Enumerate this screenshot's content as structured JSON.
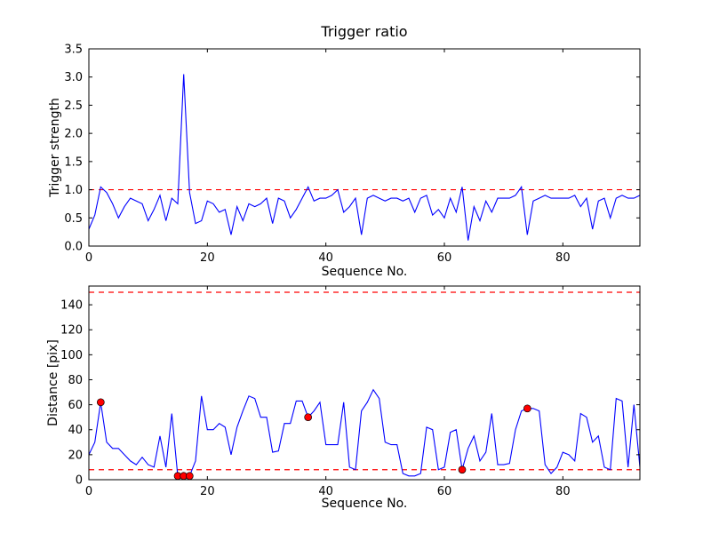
{
  "figure": {
    "background": "#ffffff",
    "line_color": "#0000ff",
    "threshold_color": "#ff0000",
    "dot_color": "#ff0000",
    "dot_edge_color": "#000000",
    "axis_color": "#000000"
  },
  "chart_data": [
    {
      "type": "line",
      "title": "Trigger ratio",
      "xlabel": "Sequence No.",
      "ylabel": "Trigger strength",
      "xlim": [
        0,
        93
      ],
      "ylim": [
        0,
        3.5
      ],
      "grid": false,
      "legend": "none",
      "xticks": {
        "values": [
          0,
          20,
          40,
          60,
          80
        ],
        "labels": [
          "0",
          "20",
          "40",
          "60",
          "80"
        ]
      },
      "yticks": {
        "values": [
          0,
          0.5,
          1.0,
          1.5,
          2.0,
          2.5,
          3.0,
          3.5
        ],
        "labels": [
          "0.0",
          "0.5",
          "1.0",
          "1.5",
          "2.0",
          "2.5",
          "3.0",
          "3.5"
        ]
      },
      "thresholds": [
        1.0
      ],
      "series": [
        {
          "name": "trigger-strength",
          "values": [
            0.3,
            0.55,
            1.05,
            0.95,
            0.75,
            0.5,
            0.7,
            0.85,
            0.8,
            0.75,
            0.45,
            0.65,
            0.9,
            0.45,
            0.85,
            0.75,
            3.05,
            0.95,
            0.4,
            0.45,
            0.8,
            0.75,
            0.6,
            0.65,
            0.2,
            0.7,
            0.45,
            0.75,
            0.7,
            0.75,
            0.85,
            0.4,
            0.85,
            0.8,
            0.5,
            0.65,
            0.85,
            1.05,
            0.8,
            0.85,
            0.85,
            0.9,
            1.0,
            0.6,
            0.7,
            0.85,
            0.2,
            0.85,
            0.9,
            0.85,
            0.8,
            0.85,
            0.85,
            0.8,
            0.85,
            0.6,
            0.85,
            0.9,
            0.55,
            0.65,
            0.5,
            0.85,
            0.6,
            1.05,
            0.1,
            0.7,
            0.45,
            0.8,
            0.6,
            0.85,
            0.85,
            0.85,
            0.9,
            1.05,
            0.2,
            0.8,
            0.85,
            0.9,
            0.85,
            0.85,
            0.85,
            0.85,
            0.9,
            0.7,
            0.85,
            0.3,
            0.8,
            0.85,
            0.5,
            0.85,
            0.9,
            0.85,
            0.85,
            0.9
          ]
        }
      ],
      "scatter": []
    },
    {
      "type": "line",
      "title": "",
      "xlabel": "Sequence No.",
      "ylabel": "Distance [pix]",
      "xlim": [
        0,
        93
      ],
      "ylim": [
        0,
        155
      ],
      "grid": false,
      "legend": "none",
      "xticks": {
        "values": [
          0,
          20,
          40,
          60,
          80
        ],
        "labels": [
          "0",
          "20",
          "40",
          "60",
          "80"
        ]
      },
      "yticks": {
        "values": [
          0,
          20,
          40,
          60,
          80,
          100,
          120,
          140
        ],
        "labels": [
          "0",
          "20",
          "40",
          "60",
          "80",
          "100",
          "120",
          "140"
        ]
      },
      "thresholds": [
        150,
        8
      ],
      "series": [
        {
          "name": "distance",
          "values": [
            20,
            30,
            62,
            30,
            25,
            25,
            20,
            15,
            12,
            18,
            12,
            10,
            35,
            10,
            53,
            3,
            3,
            3,
            15,
            67,
            40,
            40,
            45,
            42,
            20,
            42,
            55,
            67,
            65,
            50,
            50,
            22,
            23,
            45,
            45,
            63,
            63,
            50,
            55,
            62,
            28,
            28,
            28,
            62,
            10,
            8,
            55,
            62,
            72,
            65,
            30,
            28,
            28,
            5,
            3,
            3,
            5,
            42,
            40,
            8,
            10,
            38,
            40,
            8,
            25,
            35,
            15,
            22,
            53,
            12,
            12,
            13,
            40,
            55,
            57,
            57,
            55,
            12,
            5,
            10,
            22,
            20,
            15,
            53,
            50,
            30,
            35,
            10,
            8,
            65,
            63,
            10,
            60,
            10
          ]
        }
      ],
      "scatter": [
        [
          2,
          62
        ],
        [
          15,
          3
        ],
        [
          16,
          3
        ],
        [
          17,
          3
        ],
        [
          37,
          50
        ],
        [
          63,
          8
        ],
        [
          74,
          57
        ]
      ]
    }
  ]
}
